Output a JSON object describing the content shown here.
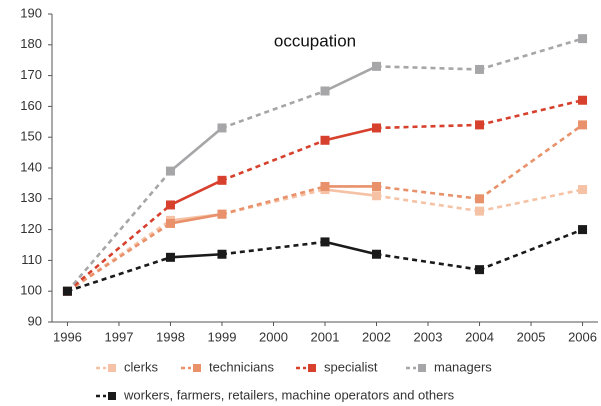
{
  "chart_data": {
    "type": "line",
    "title": "occupation",
    "x": [
      1996,
      1998,
      1999,
      2001,
      2002,
      2004,
      2006
    ],
    "series": [
      {
        "name": "clerks",
        "color": "#f5c2a5",
        "values": [
          100,
          123,
          125,
          133,
          131,
          126,
          133
        ]
      },
      {
        "name": "technicians",
        "color": "#e8916a",
        "values": [
          100,
          122,
          125,
          134,
          134,
          130,
          154
        ]
      },
      {
        "name": "specialist",
        "color": "#d6402c",
        "values": [
          100,
          128,
          136,
          149,
          153,
          154,
          162
        ]
      },
      {
        "name": "managers",
        "color": "#a6a6a8",
        "values": [
          100,
          139,
          153,
          165,
          173,
          172,
          182
        ]
      },
      {
        "name": "workers, farmers, retailers, machine operators and others",
        "color": "#1a1a1a",
        "values": [
          100,
          111,
          112,
          116,
          112,
          107,
          120
        ]
      }
    ],
    "xlim": [
      1995.7,
      2006.3
    ],
    "xticks": [
      1996,
      1997,
      1998,
      1999,
      2000,
      2001,
      2002,
      2003,
      2004,
      2005,
      2006
    ],
    "ylim": [
      90,
      190
    ],
    "yticks": [
      90,
      100,
      110,
      120,
      130,
      140,
      150,
      160,
      170,
      180,
      190
    ],
    "grid": false
  }
}
